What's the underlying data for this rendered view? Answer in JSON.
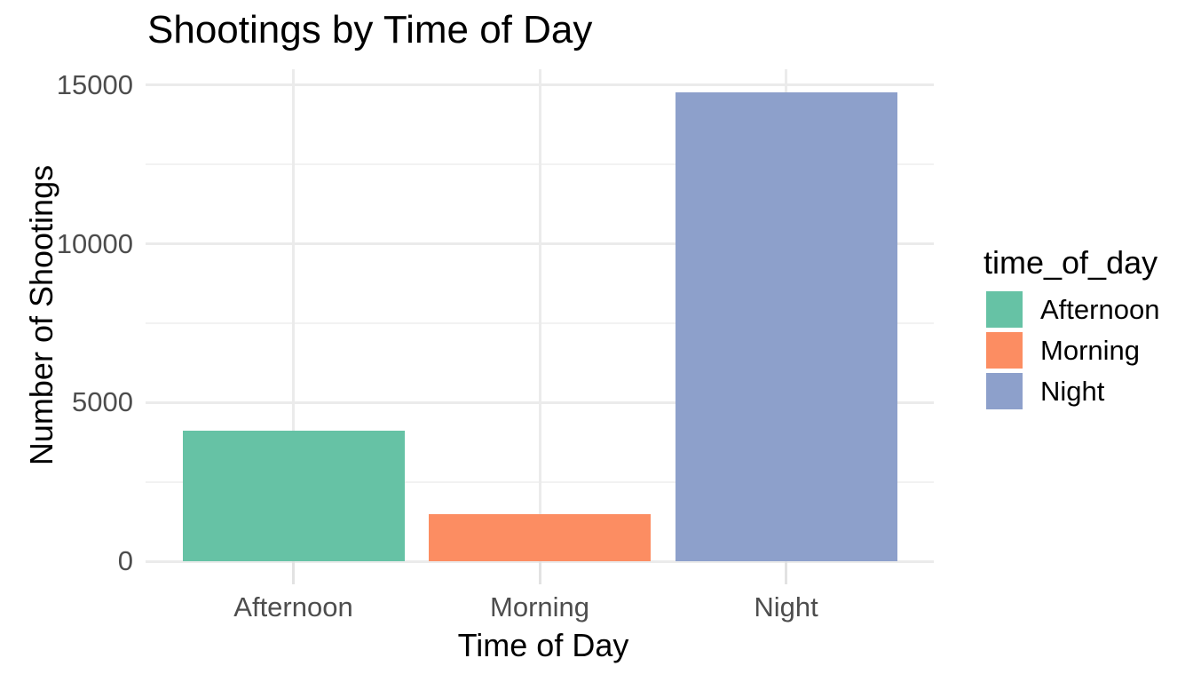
{
  "title": "Shootings by Time of Day",
  "chart_data": {
    "type": "bar",
    "title": "Shootings by Time of Day",
    "xlabel": "Time of Day",
    "ylabel": "Number of Shootings",
    "categories": [
      "Afternoon",
      "Morning",
      "Night"
    ],
    "values": [
      4100,
      1480,
      14760
    ],
    "colors": [
      "#66C2A5",
      "#FC8D62",
      "#8DA0CB"
    ],
    "y_ticks": [
      0,
      5000,
      10000,
      15000
    ],
    "y_tick_labels": [
      "0",
      "5000",
      "10000",
      "15000"
    ],
    "y_minor_ticks": [
      2500,
      7500,
      12500
    ],
    "ylim": [
      0,
      15500
    ],
    "grid": "major-and-minor",
    "background": "#FFFFFF",
    "grid_major_color": "#EBEBEB",
    "grid_minor_color": "#F2F2F2",
    "tick_label_color": "#4D4D4D",
    "text_color": "#000000",
    "legend": {
      "title": "time_of_day",
      "position": "right",
      "entries": [
        {
          "label": "Afternoon",
          "color": "#66C2A5"
        },
        {
          "label": "Morning",
          "color": "#FC8D62"
        },
        {
          "label": "Night",
          "color": "#8DA0CB"
        }
      ]
    }
  }
}
